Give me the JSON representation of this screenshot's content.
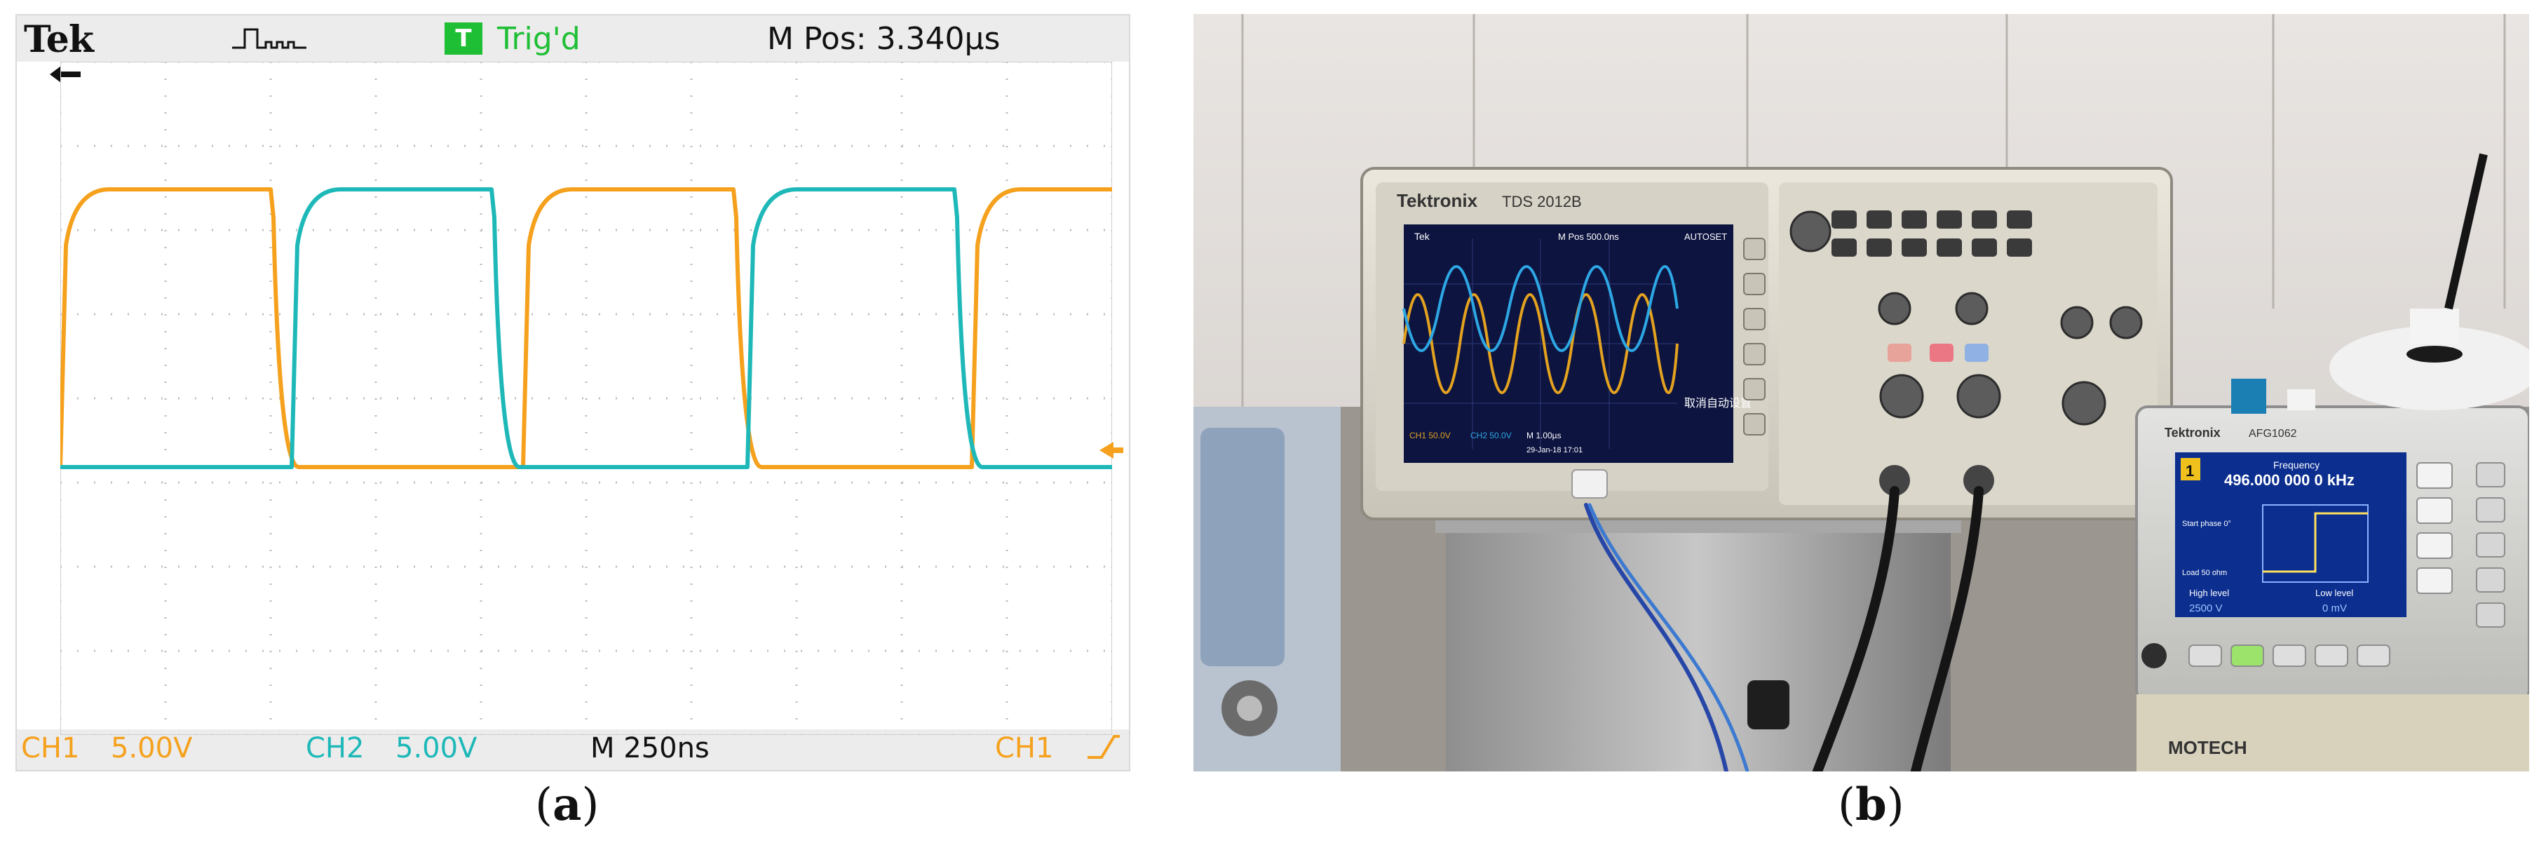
{
  "panel_a": {
    "caption_letter": "a",
    "brand": "Tek",
    "trigger_badge": "T",
    "trigger_status": "Trig'd",
    "position_readout": "M Pos: 3.340µs",
    "ch1_label": "CH1",
    "ch1_scale": "5.00V",
    "ch2_label": "CH2",
    "ch2_scale": "5.00V",
    "timebase": "M 250ns",
    "trigger_source": "CH1",
    "ground_marker": "2",
    "colors": {
      "ch1": "#f5a11d",
      "ch2": "#1fb8b8",
      "trig": "#1fbf35"
    }
  },
  "panel_b": {
    "caption_letter": "b",
    "scope_brand": "Tektronix",
    "scope_model": "TDS 2012B",
    "scope_screen_top": "M Pos 500.0ns",
    "scope_autoset": "AUTOSET",
    "scope_ch1": "CH1 50.0V",
    "scope_ch2": "CH2 50.0V",
    "scope_timebase": "M 1.00µs",
    "scope_date": "29-Jan-18 17:01",
    "scope_cancel": "取消自动设置",
    "gen_brand": "Tektronix",
    "gen_model": "AFG1062",
    "gen_channel": "1",
    "gen_frequency_label": "Frequency",
    "gen_frequency": "496.000 000 0 kHz",
    "gen_high_label": "High level",
    "gen_low_label": "Low level",
    "gen_high_value": "2500 V",
    "gen_low_value": "0 mV",
    "gen_start_phase": "Start phase 0°",
    "gen_load": "Load 50 ohm",
    "supply_brand": "MOTECH"
  }
}
